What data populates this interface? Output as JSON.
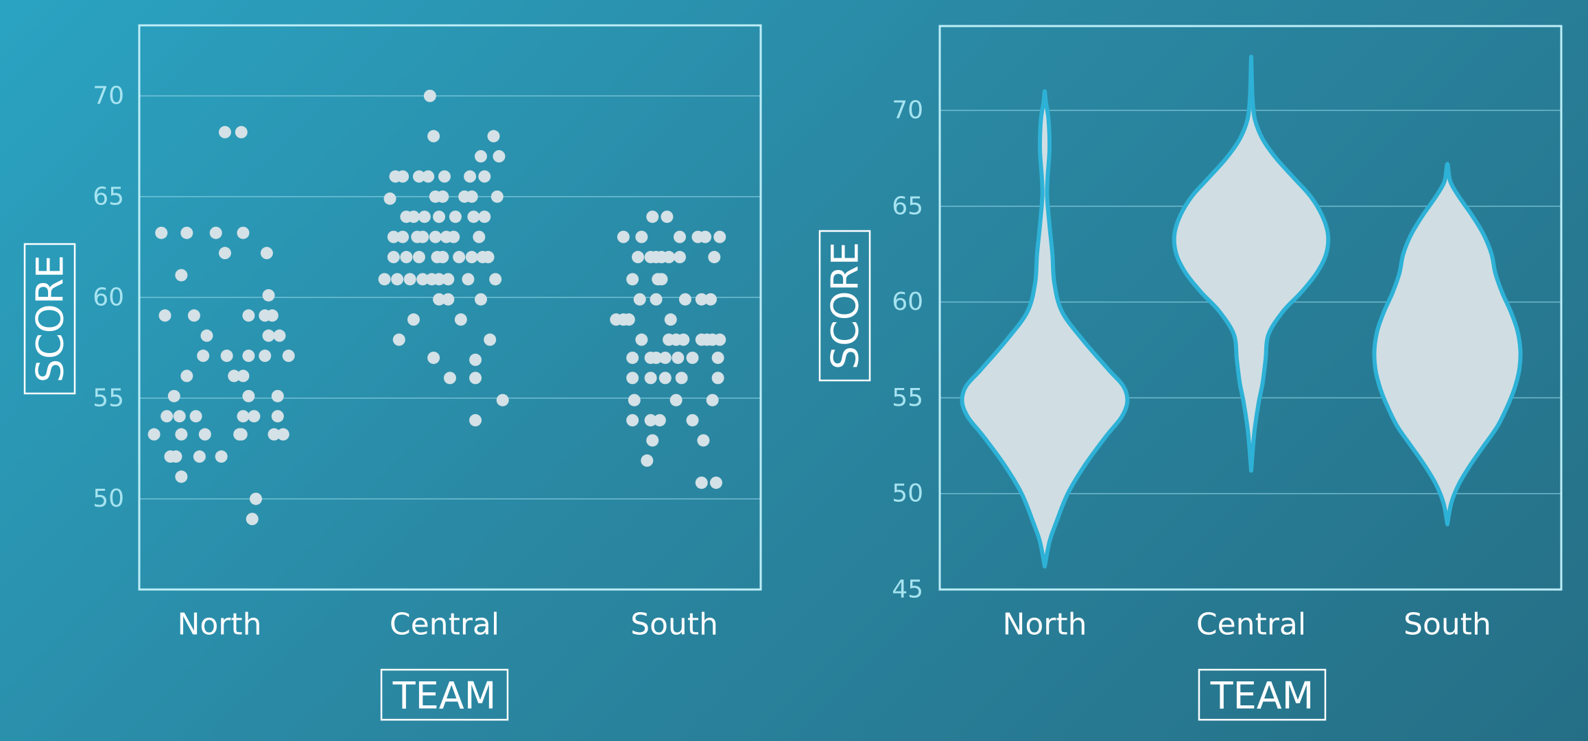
{
  "chart_data": [
    {
      "type": "scatter",
      "subtype": "strip",
      "xlabel": "TEAM",
      "ylabel": "SCORE",
      "ylim": [
        45.5,
        73.5
      ],
      "yticks": [
        50,
        55,
        60,
        65,
        70
      ],
      "categories": [
        "North",
        "Central",
        "South"
      ],
      "series": [
        {
          "name": "North",
          "points": [
            [
              -0.36,
              53.2
            ],
            [
              -0.32,
              63.2
            ],
            [
              -0.3,
              59.1
            ],
            [
              -0.29,
              54.1
            ],
            [
              -0.27,
              52.1
            ],
            [
              -0.25,
              55.1
            ],
            [
              -0.24,
              52.1
            ],
            [
              -0.21,
              61.1
            ],
            [
              -0.22,
              54.1
            ],
            [
              -0.21,
              51.1
            ],
            [
              -0.21,
              53.2
            ],
            [
              -0.18,
              63.2
            ],
            [
              -0.18,
              56.1
            ],
            [
              -0.14,
              59.1
            ],
            [
              -0.13,
              54.1
            ],
            [
              -0.11,
              52.1
            ],
            [
              -0.09,
              57.1
            ],
            [
              -0.08,
              53.2
            ],
            [
              -0.07,
              58.1
            ],
            [
              -0.02,
              63.2
            ],
            [
              0.01,
              52.1
            ],
            [
              0.03,
              62.2
            ],
            [
              0.03,
              68.2
            ],
            [
              0.04,
              57.1
            ],
            [
              0.08,
              56.1
            ],
            [
              0.11,
              53.2
            ],
            [
              0.12,
              68.2
            ],
            [
              0.12,
              53.2
            ],
            [
              0.13,
              54.1
            ],
            [
              0.13,
              56.1
            ],
            [
              0.13,
              63.2
            ],
            [
              0.16,
              57.1
            ],
            [
              0.16,
              59.1
            ],
            [
              0.16,
              55.1
            ],
            [
              0.18,
              49.0
            ],
            [
              0.19,
              54.1
            ],
            [
              0.2,
              50.0
            ],
            [
              0.25,
              59.1
            ],
            [
              0.25,
              57.1
            ],
            [
              0.26,
              62.2
            ],
            [
              0.27,
              60.1
            ],
            [
              0.27,
              58.1
            ],
            [
              0.29,
              59.1
            ],
            [
              0.3,
              53.2
            ],
            [
              0.32,
              55.1
            ],
            [
              0.32,
              54.1
            ],
            [
              0.33,
              58.1
            ],
            [
              0.35,
              53.2
            ],
            [
              0.38,
              57.1
            ]
          ]
        },
        {
          "name": "Central",
          "points": [
            [
              -0.33,
              60.9
            ],
            [
              -0.3,
              64.9
            ],
            [
              -0.28,
              62.0
            ],
            [
              -0.28,
              63.0
            ],
            [
              -0.27,
              66.0
            ],
            [
              -0.26,
              60.9
            ],
            [
              -0.25,
              57.9
            ],
            [
              -0.23,
              66.0
            ],
            [
              -0.23,
              63.0
            ],
            [
              -0.21,
              64.0
            ],
            [
              -0.21,
              62.0
            ],
            [
              -0.19,
              60.9
            ],
            [
              -0.17,
              58.9
            ],
            [
              -0.17,
              64.0
            ],
            [
              -0.15,
              63.0
            ],
            [
              -0.14,
              62.0
            ],
            [
              -0.14,
              66.0
            ],
            [
              -0.12,
              63.0
            ],
            [
              -0.12,
              60.9
            ],
            [
              -0.11,
              64.0
            ],
            [
              -0.09,
              66.0
            ],
            [
              -0.08,
              70.0
            ],
            [
              -0.07,
              60.9
            ],
            [
              -0.06,
              68.0
            ],
            [
              -0.06,
              57.0
            ],
            [
              -0.05,
              63.0
            ],
            [
              -0.05,
              65.0
            ],
            [
              -0.04,
              62.0
            ],
            [
              -0.03,
              60.9
            ],
            [
              -0.03,
              59.9
            ],
            [
              -0.03,
              64.0
            ],
            [
              -0.01,
              65.0
            ],
            [
              -0.01,
              62.0
            ],
            [
              0.0,
              66.0
            ],
            [
              0.01,
              63.0
            ],
            [
              0.02,
              59.9
            ],
            [
              0.02,
              60.9
            ],
            [
              0.03,
              56.0
            ],
            [
              0.05,
              63.0
            ],
            [
              0.06,
              64.0
            ],
            [
              0.08,
              62.0
            ],
            [
              0.09,
              58.9
            ],
            [
              0.11,
              65.0
            ],
            [
              0.13,
              60.9
            ],
            [
              0.14,
              66.0
            ],
            [
              0.15,
              65.0
            ],
            [
              0.15,
              62.0
            ],
            [
              0.16,
              64.0
            ],
            [
              0.17,
              56.9
            ],
            [
              0.17,
              56.0
            ],
            [
              0.17,
              53.9
            ],
            [
              0.19,
              63.0
            ],
            [
              0.2,
              59.9
            ],
            [
              0.2,
              67.0
            ],
            [
              0.21,
              62.0
            ],
            [
              0.22,
              66.0
            ],
            [
              0.22,
              64.0
            ],
            [
              0.24,
              62.0
            ],
            [
              0.25,
              57.9
            ],
            [
              0.27,
              68.0
            ],
            [
              0.28,
              60.9
            ],
            [
              0.29,
              65.0
            ],
            [
              0.3,
              67.0
            ],
            [
              0.32,
              54.9
            ]
          ]
        },
        {
          "name": "South",
          "points": [
            [
              -0.32,
              58.9
            ],
            [
              -0.28,
              58.9
            ],
            [
              -0.28,
              63.0
            ],
            [
              -0.25,
              58.9
            ],
            [
              -0.23,
              60.9
            ],
            [
              -0.23,
              57.0
            ],
            [
              -0.23,
              56.0
            ],
            [
              -0.23,
              53.9
            ],
            [
              -0.22,
              54.9
            ],
            [
              -0.2,
              62.0
            ],
            [
              -0.19,
              59.9
            ],
            [
              -0.18,
              63.0
            ],
            [
              -0.18,
              57.9
            ],
            [
              -0.15,
              51.9
            ],
            [
              -0.13,
              57.0
            ],
            [
              -0.13,
              62.0
            ],
            [
              -0.13,
              56.0
            ],
            [
              -0.13,
              53.9
            ],
            [
              -0.12,
              52.9
            ],
            [
              -0.12,
              64.0
            ],
            [
              -0.1,
              59.9
            ],
            [
              -0.1,
              62.0
            ],
            [
              -0.1,
              57.0
            ],
            [
              -0.09,
              60.9
            ],
            [
              -0.08,
              53.9
            ],
            [
              -0.07,
              62.0
            ],
            [
              -0.07,
              60.9
            ],
            [
              -0.05,
              57.0
            ],
            [
              -0.05,
              56.0
            ],
            [
              -0.04,
              64.0
            ],
            [
              -0.03,
              57.9
            ],
            [
              -0.03,
              62.0
            ],
            [
              -0.02,
              58.9
            ],
            [
              0.01,
              57.9
            ],
            [
              0.01,
              54.9
            ],
            [
              0.02,
              57.0
            ],
            [
              0.03,
              63.0
            ],
            [
              0.03,
              62.0
            ],
            [
              0.04,
              56.0
            ],
            [
              0.05,
              57.9
            ],
            [
              0.06,
              59.9
            ],
            [
              0.1,
              57.0
            ],
            [
              0.1,
              53.9
            ],
            [
              0.13,
              63.0
            ],
            [
              0.15,
              50.8
            ],
            [
              0.15,
              57.9
            ],
            [
              0.15,
              59.9
            ],
            [
              0.16,
              52.9
            ],
            [
              0.17,
              63.0
            ],
            [
              0.18,
              57.9
            ],
            [
              0.2,
              59.9
            ],
            [
              0.21,
              57.9
            ],
            [
              0.21,
              54.9
            ],
            [
              0.22,
              62.0
            ],
            [
              0.23,
              50.8
            ],
            [
              0.24,
              56.0
            ],
            [
              0.24,
              57.0
            ],
            [
              0.25,
              63.0
            ],
            [
              0.25,
              57.9
            ]
          ]
        }
      ]
    },
    {
      "type": "violin",
      "xlabel": "TEAM",
      "ylabel": "SCORE",
      "ylim": [
        45,
        74.4
      ],
      "yticks": [
        45,
        50,
        55,
        60,
        65,
        70
      ],
      "categories": [
        "North",
        "Central",
        "South"
      ],
      "series": [
        {
          "name": "North",
          "profile": [
            [
              46.2,
              0.0
            ],
            [
              47.5,
              0.05
            ],
            [
              48.5,
              0.12
            ],
            [
              50.0,
              0.24
            ],
            [
              51.5,
              0.42
            ],
            [
              53.0,
              0.64
            ],
            [
              54.0,
              0.8
            ],
            [
              54.8,
              0.86
            ],
            [
              55.6,
              0.82
            ],
            [
              56.5,
              0.66
            ],
            [
              58.0,
              0.4
            ],
            [
              59.5,
              0.18
            ],
            [
              61.0,
              0.1
            ],
            [
              62.5,
              0.08
            ],
            [
              64.0,
              0.05
            ],
            [
              65.5,
              0.025
            ],
            [
              66.5,
              0.03
            ],
            [
              68.0,
              0.05
            ],
            [
              69.5,
              0.04
            ],
            [
              70.5,
              0.01
            ],
            [
              71.0,
              0.0
            ]
          ]
        },
        {
          "name": "Central",
          "profile": [
            [
              51.2,
              0.0
            ],
            [
              52.5,
              0.02
            ],
            [
              53.5,
              0.04
            ],
            [
              54.8,
              0.08
            ],
            [
              55.8,
              0.12
            ],
            [
              57.0,
              0.15
            ],
            [
              58.3,
              0.18
            ],
            [
              59.5,
              0.33
            ],
            [
              60.5,
              0.52
            ],
            [
              61.5,
              0.68
            ],
            [
              62.5,
              0.78
            ],
            [
              63.5,
              0.8
            ],
            [
              64.5,
              0.74
            ],
            [
              65.5,
              0.62
            ],
            [
              66.5,
              0.44
            ],
            [
              67.5,
              0.26
            ],
            [
              68.5,
              0.12
            ],
            [
              69.5,
              0.04
            ],
            [
              70.5,
              0.015
            ],
            [
              71.5,
              0.007
            ],
            [
              72.8,
              0.0
            ]
          ]
        },
        {
          "name": "South",
          "profile": [
            [
              48.4,
              0.0
            ],
            [
              49.5,
              0.04
            ],
            [
              50.5,
              0.12
            ],
            [
              51.5,
              0.24
            ],
            [
              52.5,
              0.38
            ],
            [
              53.5,
              0.52
            ],
            [
              54.5,
              0.62
            ],
            [
              55.5,
              0.7
            ],
            [
              56.5,
              0.75
            ],
            [
              57.5,
              0.76
            ],
            [
              58.5,
              0.73
            ],
            [
              59.5,
              0.66
            ],
            [
              60.5,
              0.57
            ],
            [
              61.5,
              0.5
            ],
            [
              62.5,
              0.46
            ],
            [
              63.5,
              0.38
            ],
            [
              64.5,
              0.26
            ],
            [
              65.5,
              0.12
            ],
            [
              66.3,
              0.03
            ],
            [
              67.2,
              0.0
            ]
          ]
        }
      ]
    }
  ],
  "colors": {
    "frame": "#bdeef8",
    "tick_text": "#a6e3f0",
    "gridline": "#8fd5e6",
    "dot": "#d4e1e6",
    "violin_fill": "#d0dee3",
    "violin_stroke": "#2eb1d6",
    "label_text": "#ffffff"
  }
}
